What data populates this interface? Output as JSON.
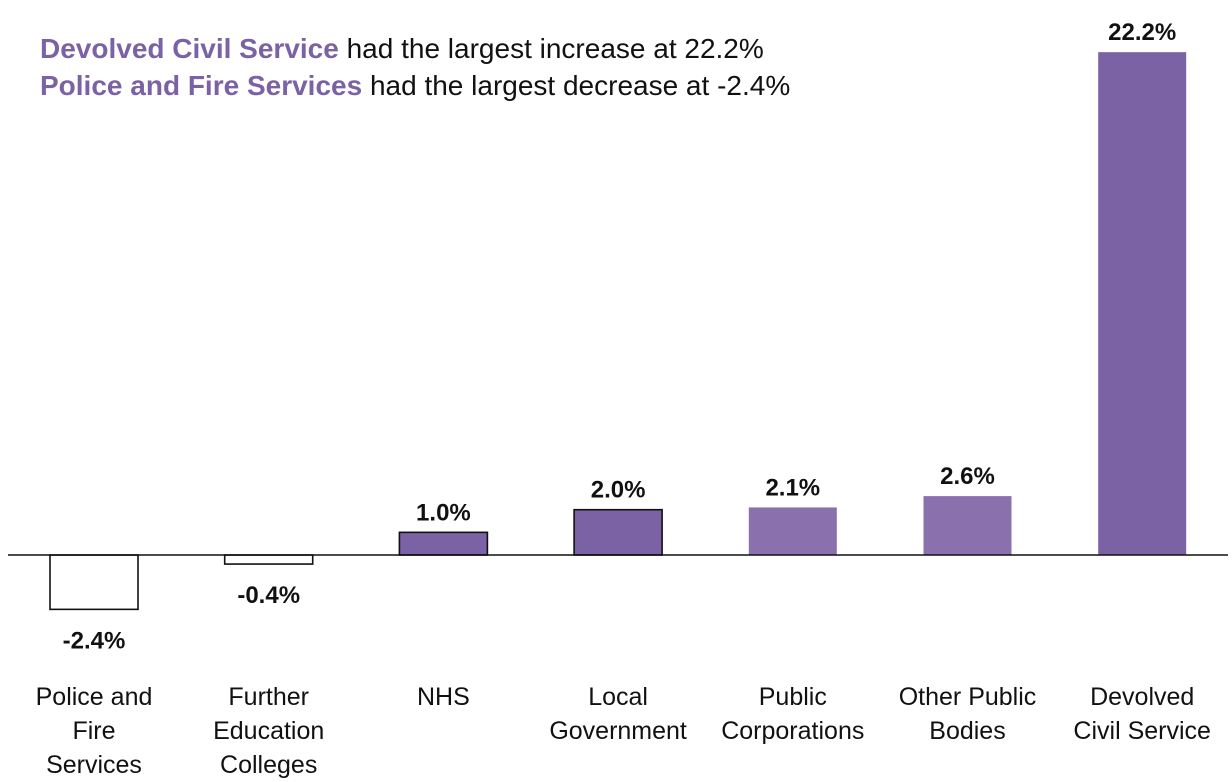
{
  "headline": {
    "line1_bold": "Devolved Civil Service",
    "line1_rest": " had the largest increase at 22.2%",
    "line2_bold": "Police and Fire Services",
    "line2_rest": " had the largest decrease at -2.4%"
  },
  "colors": {
    "accent": "#7b62a4",
    "bar_positive": "#7b62a4",
    "bar_positive_light": "#8a70ad",
    "bar_negative_fill": "#ffffff",
    "bar_outline": "#111111",
    "text": "#111111"
  },
  "chart_data": {
    "type": "bar",
    "categories": [
      [
        "Police and",
        "Fire",
        "Services"
      ],
      [
        "Further",
        "Education",
        "Colleges"
      ],
      [
        "NHS"
      ],
      [
        "Local",
        "Government"
      ],
      [
        "Public",
        "Corporations"
      ],
      [
        "Other Public",
        "Bodies"
      ],
      [
        "Devolved",
        "Civil Service"
      ]
    ],
    "values": [
      -2.4,
      -0.4,
      1.0,
      2.0,
      2.1,
      2.6,
      22.2
    ],
    "data_labels": [
      "-2.4%",
      "-0.4%",
      "1.0%",
      "2.0%",
      "2.1%",
      "2.6%",
      "22.2%"
    ],
    "outlined": [
      true,
      true,
      true,
      true,
      false,
      false,
      false
    ],
    "ylim": [
      -3,
      23
    ],
    "grid": false,
    "legend": "none"
  }
}
